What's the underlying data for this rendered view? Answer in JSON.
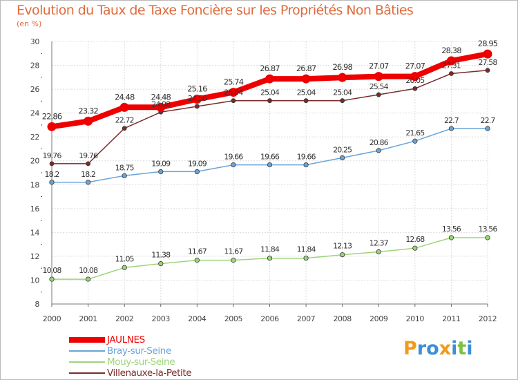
{
  "title": "Evolution du Taux de Taxe Foncière sur les Propriétés Non Bâties",
  "subtitle": "(en %)",
  "logo": {
    "letters": [
      "P",
      "r",
      "o",
      "x",
      "i",
      "t",
      "i"
    ],
    "colors": [
      "#f39a1b",
      "#3c8fd6",
      "#3c8fd6",
      "#f39a1b",
      "#3c8fd6",
      "#7cc242",
      "#3c8fd6"
    ]
  },
  "chart_data": {
    "type": "line",
    "title": "Evolution du Taux de Taxe Foncière sur les Propriétés Non Bâties",
    "ylabel": "(en %)",
    "xlabel": "",
    "categories": [
      "2000",
      "2001",
      "2002",
      "2003",
      "2004",
      "2005",
      "2006",
      "2007",
      "2008",
      "2009",
      "2010",
      "2011",
      "2012"
    ],
    "ylim": [
      8,
      30
    ],
    "yticks": [
      8,
      10,
      12,
      14,
      16,
      18,
      20,
      22,
      24,
      26,
      28,
      30
    ],
    "grid": true,
    "legend_position": "bottom-left",
    "series": [
      {
        "name": "JAULNES",
        "color": "#ee0000",
        "values": [
          22.86,
          23.32,
          24.48,
          24.48,
          25.16,
          25.74,
          26.87,
          26.87,
          26.98,
          27.07,
          27.07,
          28.38,
          28.95
        ],
        "labels": [
          "22.86",
          "23.32",
          "24.48",
          "24.48",
          "25.16",
          "25.74",
          "26.87",
          "26.87",
          "26.98",
          "27.07",
          "27.07",
          "28.38",
          "28.95"
        ]
      },
      {
        "name": "Bray-sur-Seine",
        "color": "#6aa4d8",
        "values": [
          18.2,
          18.2,
          18.75,
          19.09,
          19.09,
          19.66,
          19.66,
          19.66,
          20.25,
          20.86,
          21.65,
          22.7,
          22.7
        ],
        "labels": [
          "18.2",
          "18.2",
          "18.75",
          "19.09",
          "19.09",
          "19.66",
          "19.66",
          "19.66",
          "20.25",
          "20.86",
          "21.65",
          "22.7",
          "22.7"
        ]
      },
      {
        "name": "Mouy-sur-Seine",
        "color": "#9ed47a",
        "values": [
          10.08,
          10.08,
          11.05,
          11.38,
          11.67,
          11.67,
          11.84,
          11.84,
          12.13,
          12.37,
          12.68,
          13.56,
          13.56
        ],
        "labels": [
          "10.08",
          "10.08",
          "11.05",
          "11.38",
          "11.67",
          "11.67",
          "11.84",
          "11.84",
          "12.13",
          "12.37",
          "12.68",
          "13.56",
          "13.56"
        ]
      },
      {
        "name": "Villenauxe-la-Petite",
        "color": "#7a2b2b",
        "values": [
          19.76,
          19.76,
          22.72,
          24.08,
          24.56,
          25.04,
          25.04,
          25.04,
          25.04,
          25.54,
          26.05,
          27.31,
          27.58
        ],
        "labels": [
          "19.76",
          "19.76",
          "22.72",
          "24.08",
          "24.56",
          "25.04",
          "25.04",
          "25.04",
          "25.04",
          "25.54",
          "26.05",
          "27.31",
          "27.58"
        ]
      }
    ]
  }
}
